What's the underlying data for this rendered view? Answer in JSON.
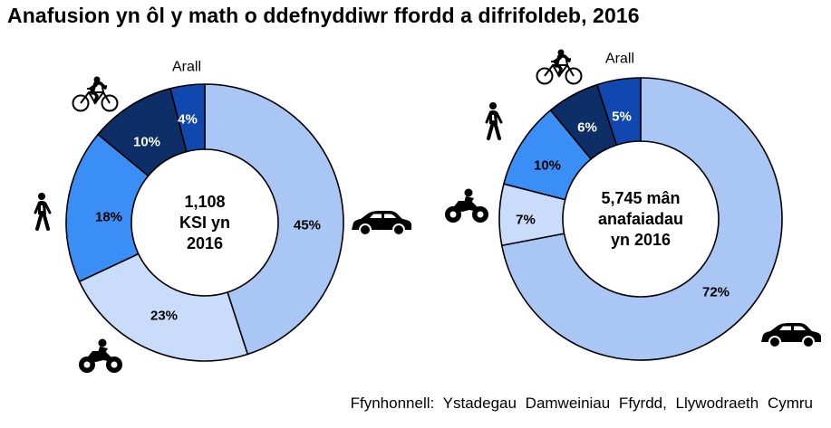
{
  "title": "Anafusion yn ôl y math o ddefnyddiwr ffordd a difrifoldeb, 2016",
  "source": "Ffynhonnell: Ystadegau Damweiniau Ffyrdd, Llywodraeth Cymru",
  "colors": {
    "car": "#a9c6f5",
    "motorcycle": "#c9dcfa",
    "pedestrian": "#3a8ef6",
    "cyclist": "#0d2e66",
    "other": "#1148b0",
    "border": "#000000"
  },
  "chart_data": [
    {
      "type": "pie",
      "donut": true,
      "center_label": [
        "1,108",
        "KSI yn",
        "2016"
      ],
      "slices": [
        {
          "category": "car",
          "icon": "car-icon",
          "value": 45,
          "label": "45%"
        },
        {
          "category": "motorcycle",
          "icon": "motorcycle-icon",
          "value": 23,
          "label": "23%"
        },
        {
          "category": "pedestrian",
          "icon": "pedestrian-icon",
          "value": 18,
          "label": "18%"
        },
        {
          "category": "cyclist",
          "icon": "cyclist-icon",
          "value": 10,
          "label": "10%"
        },
        {
          "category": "other",
          "text_label": "Arall",
          "value": 4,
          "label": "4%"
        }
      ]
    },
    {
      "type": "pie",
      "donut": true,
      "center_label": [
        "5,745 mân",
        "anafaiadau",
        "yn 2016"
      ],
      "slices": [
        {
          "category": "car",
          "icon": "car-icon",
          "value": 72,
          "label": "72%"
        },
        {
          "category": "motorcycle",
          "icon": "motorcycle-icon",
          "value": 7,
          "label": "7%"
        },
        {
          "category": "pedestrian",
          "icon": "pedestrian-icon",
          "value": 10,
          "label": "10%"
        },
        {
          "category": "cyclist",
          "icon": "cyclist-icon",
          "value": 6,
          "label": "6%"
        },
        {
          "category": "other",
          "text_label": "Arall",
          "value": 5,
          "label": "5%"
        }
      ]
    }
  ]
}
